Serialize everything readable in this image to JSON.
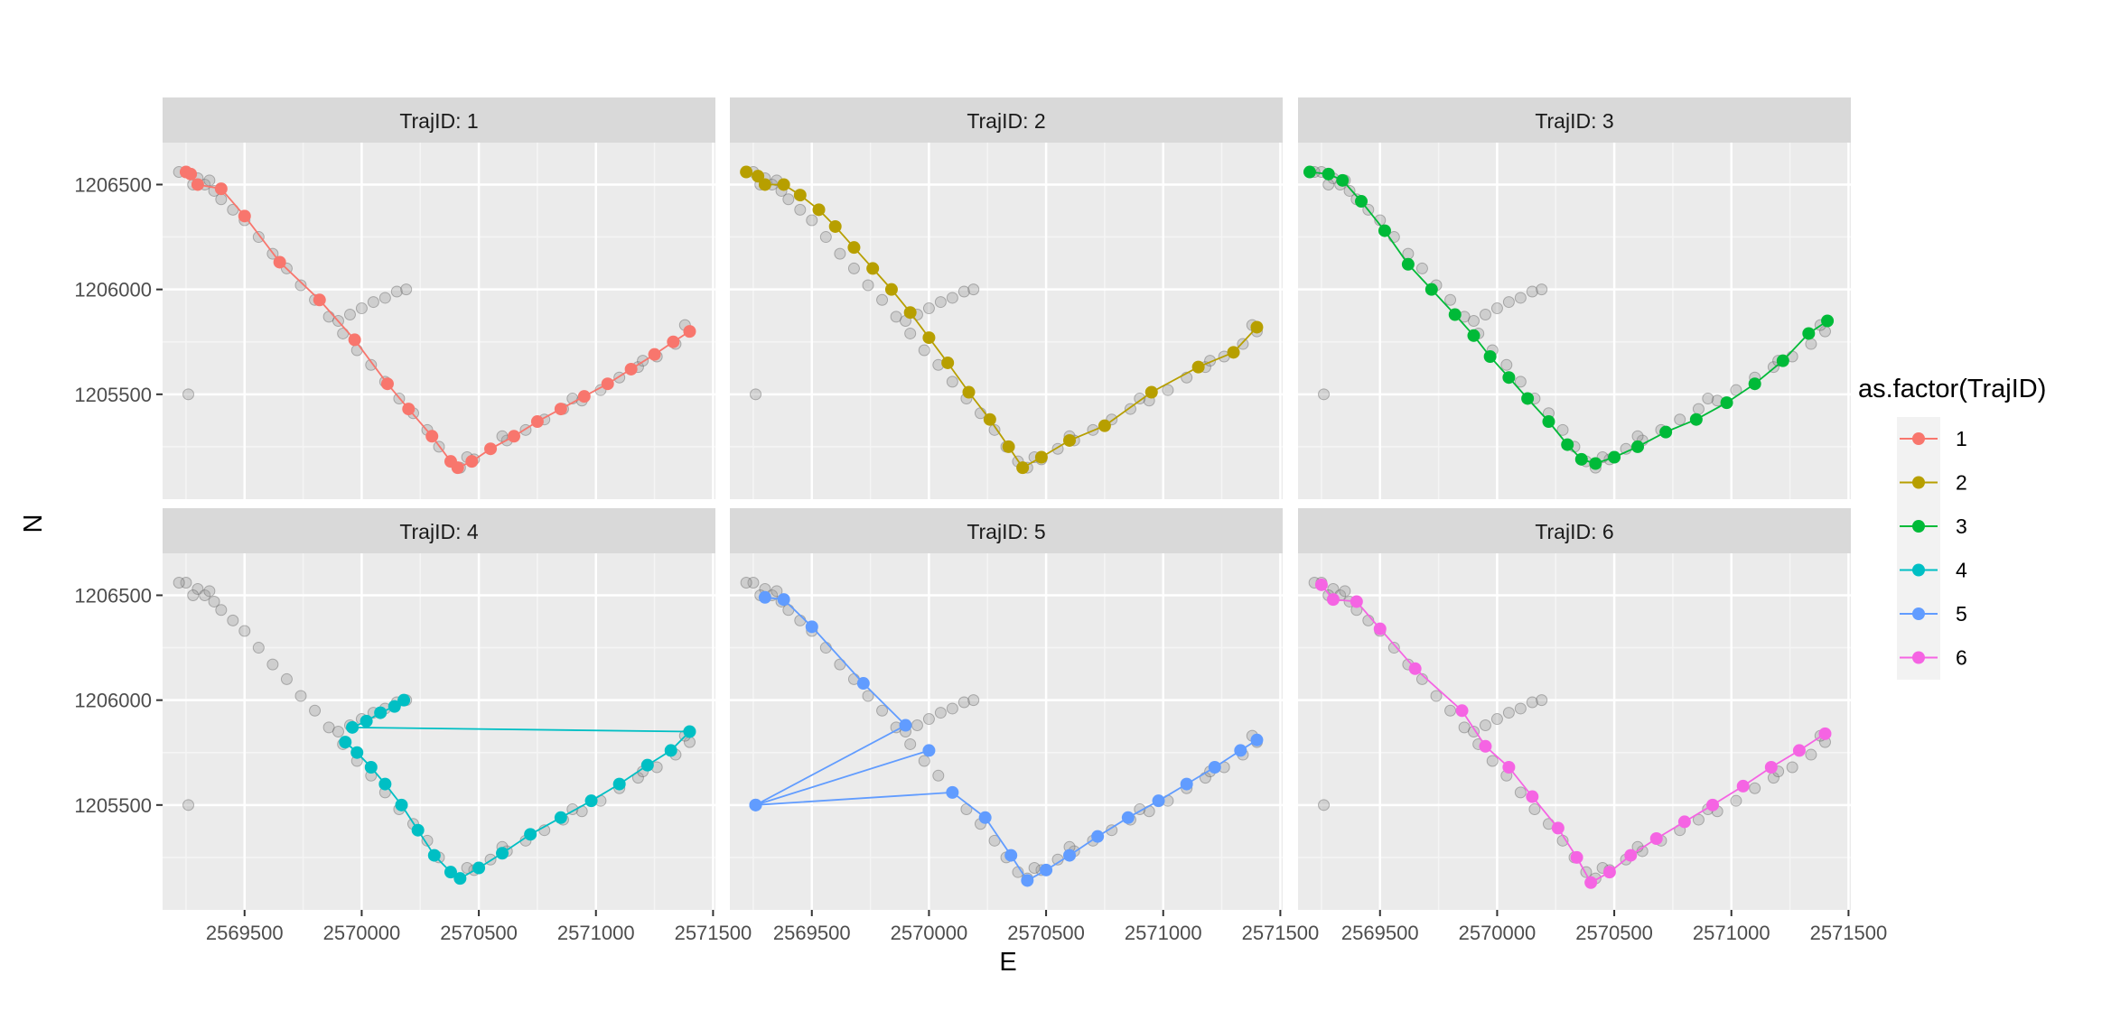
{
  "chart_data": {
    "type": "scatter",
    "facet_var": "TrajID",
    "facet_label_prefix": "TrajID: ",
    "xlabel": "E",
    "ylabel": "N",
    "xlim": [
      2569150,
      2571510
    ],
    "ylim": [
      1205000,
      1206700
    ],
    "x_ticks": [
      2569500,
      2570000,
      2570500,
      2571000,
      2571500
    ],
    "x_tick_labels": [
      "2569500",
      "2570000",
      "2570500",
      "2571000",
      "2571500"
    ],
    "y_ticks": [
      1205500,
      1206000,
      1206500
    ],
    "y_tick_labels": [
      "1205500",
      "1206000",
      "1206500"
    ],
    "legend": {
      "title": "as.factor(TrajID)",
      "position": "right",
      "entries": [
        "1",
        "2",
        "3",
        "4",
        "5",
        "6"
      ]
    },
    "colors": [
      "#F8766D",
      "#B79F00",
      "#00BA38",
      "#00BFC4",
      "#619CFF",
      "#F564E3"
    ],
    "background_color": "#999999",
    "background_points": [
      [
        2569250,
        1206560
      ],
      [
        2569300,
        1206530
      ],
      [
        2569330,
        1206500
      ],
      [
        2569370,
        1206470
      ],
      [
        2569400,
        1206430
      ],
      [
        2569450,
        1206380
      ],
      [
        2569500,
        1206330
      ],
      [
        2569560,
        1206250
      ],
      [
        2569620,
        1206170
      ],
      [
        2569680,
        1206100
      ],
      [
        2569740,
        1206020
      ],
      [
        2569800,
        1205950
      ],
      [
        2569860,
        1205870
      ],
      [
        2569920,
        1205790
      ],
      [
        2569980,
        1205710
      ],
      [
        2570040,
        1205640
      ],
      [
        2570100,
        1205560
      ],
      [
        2570160,
        1205480
      ],
      [
        2570220,
        1205410
      ],
      [
        2570280,
        1205330
      ],
      [
        2570330,
        1205250
      ],
      [
        2570380,
        1205180
      ],
      [
        2570420,
        1205150
      ],
      [
        2570480,
        1205190
      ],
      [
        2570550,
        1205240
      ],
      [
        2570620,
        1205280
      ],
      [
        2570700,
        1205330
      ],
      [
        2570780,
        1205380
      ],
      [
        2570860,
        1205430
      ],
      [
        2570940,
        1205470
      ],
      [
        2571020,
        1205520
      ],
      [
        2571100,
        1205580
      ],
      [
        2571180,
        1205630
      ],
      [
        2571260,
        1205680
      ],
      [
        2571340,
        1205740
      ],
      [
        2571400,
        1205800
      ],
      [
        2569900,
        1205850
      ],
      [
        2569950,
        1205880
      ],
      [
        2570000,
        1205910
      ],
      [
        2570050,
        1205940
      ],
      [
        2570100,
        1205960
      ],
      [
        2570150,
        1205990
      ],
      [
        2570190,
        1206000
      ],
      [
        2569260,
        1205500
      ],
      [
        2569220,
        1206560
      ],
      [
        2569280,
        1206500
      ],
      [
        2569350,
        1206520
      ],
      [
        2570450,
        1205200
      ],
      [
        2570600,
        1205300
      ],
      [
        2570900,
        1205480
      ],
      [
        2571200,
        1205660
      ],
      [
        2571380,
        1205830
      ]
    ],
    "series": [
      {
        "name": "1",
        "points": [
          [
            2569250,
            1206560
          ],
          [
            2569270,
            1206550
          ],
          [
            2569300,
            1206500
          ],
          [
            2569400,
            1206480
          ],
          [
            2569500,
            1206350
          ],
          [
            2569650,
            1206130
          ],
          [
            2569820,
            1205950
          ],
          [
            2569970,
            1205760
          ],
          [
            2570110,
            1205550
          ],
          [
            2570200,
            1205430
          ],
          [
            2570300,
            1205300
          ],
          [
            2570380,
            1205180
          ],
          [
            2570410,
            1205150
          ],
          [
            2570470,
            1205180
          ],
          [
            2570550,
            1205240
          ],
          [
            2570650,
            1205300
          ],
          [
            2570750,
            1205370
          ],
          [
            2570850,
            1205430
          ],
          [
            2570950,
            1205490
          ],
          [
            2571050,
            1205550
          ],
          [
            2571150,
            1205620
          ],
          [
            2571250,
            1205690
          ],
          [
            2571330,
            1205750
          ],
          [
            2571400,
            1205800
          ]
        ]
      },
      {
        "name": "2",
        "points": [
          [
            2569220,
            1206560
          ],
          [
            2569270,
            1206540
          ],
          [
            2569300,
            1206500
          ],
          [
            2569380,
            1206500
          ],
          [
            2569450,
            1206450
          ],
          [
            2569530,
            1206380
          ],
          [
            2569600,
            1206300
          ],
          [
            2569680,
            1206200
          ],
          [
            2569760,
            1206100
          ],
          [
            2569840,
            1206000
          ],
          [
            2569920,
            1205890
          ],
          [
            2570000,
            1205770
          ],
          [
            2570080,
            1205650
          ],
          [
            2570170,
            1205510
          ],
          [
            2570260,
            1205380
          ],
          [
            2570340,
            1205250
          ],
          [
            2570400,
            1205150
          ],
          [
            2570480,
            1205200
          ],
          [
            2570600,
            1205280
          ],
          [
            2570750,
            1205350
          ],
          [
            2570950,
            1205510
          ],
          [
            2571150,
            1205630
          ],
          [
            2571300,
            1205700
          ],
          [
            2571400,
            1205820
          ]
        ]
      },
      {
        "name": "3",
        "points": [
          [
            2569200,
            1206560
          ],
          [
            2569280,
            1206550
          ],
          [
            2569340,
            1206520
          ],
          [
            2569420,
            1206420
          ],
          [
            2569520,
            1206280
          ],
          [
            2569620,
            1206120
          ],
          [
            2569720,
            1206000
          ],
          [
            2569820,
            1205880
          ],
          [
            2569900,
            1205780
          ],
          [
            2569970,
            1205680
          ],
          [
            2570050,
            1205580
          ],
          [
            2570130,
            1205480
          ],
          [
            2570220,
            1205370
          ],
          [
            2570300,
            1205260
          ],
          [
            2570360,
            1205190
          ],
          [
            2570420,
            1205170
          ],
          [
            2570500,
            1205200
          ],
          [
            2570600,
            1205250
          ],
          [
            2570720,
            1205320
          ],
          [
            2570850,
            1205380
          ],
          [
            2570980,
            1205460
          ],
          [
            2571100,
            1205550
          ],
          [
            2571220,
            1205660
          ],
          [
            2571330,
            1205790
          ],
          [
            2571410,
            1205850
          ]
        ]
      },
      {
        "name": "4",
        "points": [
          [
            2569930,
            1205800
          ],
          [
            2569980,
            1205750
          ],
          [
            2570040,
            1205680
          ],
          [
            2570100,
            1205600
          ],
          [
            2570170,
            1205500
          ],
          [
            2570240,
            1205380
          ],
          [
            2570310,
            1205260
          ],
          [
            2570380,
            1205180
          ],
          [
            2570420,
            1205150
          ],
          [
            2570500,
            1205200
          ],
          [
            2570600,
            1205270
          ],
          [
            2570720,
            1205360
          ],
          [
            2570850,
            1205440
          ],
          [
            2570980,
            1205520
          ],
          [
            2571100,
            1205600
          ],
          [
            2571220,
            1205690
          ],
          [
            2571320,
            1205760
          ],
          [
            2571400,
            1205850
          ],
          [
            2569960,
            1205870
          ],
          [
            2570020,
            1205900
          ],
          [
            2570080,
            1205940
          ],
          [
            2570140,
            1205970
          ],
          [
            2570180,
            1206000
          ]
        ]
      },
      {
        "name": "5",
        "points": [
          [
            2569300,
            1206490
          ],
          [
            2569380,
            1206480
          ],
          [
            2569500,
            1206350
          ],
          [
            2569720,
            1206080
          ],
          [
            2569900,
            1205880
          ],
          [
            2569260,
            1205500
          ],
          [
            2570000,
            1205760
          ],
          [
            2569260,
            1205500
          ],
          [
            2570100,
            1205560
          ],
          [
            2570240,
            1205440
          ],
          [
            2570350,
            1205260
          ],
          [
            2570420,
            1205140
          ],
          [
            2570500,
            1205190
          ],
          [
            2570600,
            1205260
          ],
          [
            2570720,
            1205350
          ],
          [
            2570850,
            1205440
          ],
          [
            2570980,
            1205520
          ],
          [
            2571100,
            1205600
          ],
          [
            2571220,
            1205680
          ],
          [
            2571330,
            1205760
          ],
          [
            2571400,
            1205810
          ]
        ]
      },
      {
        "name": "6",
        "points": [
          [
            2569250,
            1206550
          ],
          [
            2569300,
            1206480
          ],
          [
            2569400,
            1206470
          ],
          [
            2569500,
            1206340
          ],
          [
            2569650,
            1206150
          ],
          [
            2569850,
            1205950
          ],
          [
            2569950,
            1205780
          ],
          [
            2570050,
            1205680
          ],
          [
            2570150,
            1205540
          ],
          [
            2570260,
            1205390
          ],
          [
            2570340,
            1205250
          ],
          [
            2570400,
            1205130
          ],
          [
            2570480,
            1205180
          ],
          [
            2570570,
            1205260
          ],
          [
            2570680,
            1205340
          ],
          [
            2570800,
            1205420
          ],
          [
            2570920,
            1205500
          ],
          [
            2571050,
            1205590
          ],
          [
            2571170,
            1205680
          ],
          [
            2571290,
            1205760
          ],
          [
            2571400,
            1205840
          ]
        ]
      }
    ]
  }
}
